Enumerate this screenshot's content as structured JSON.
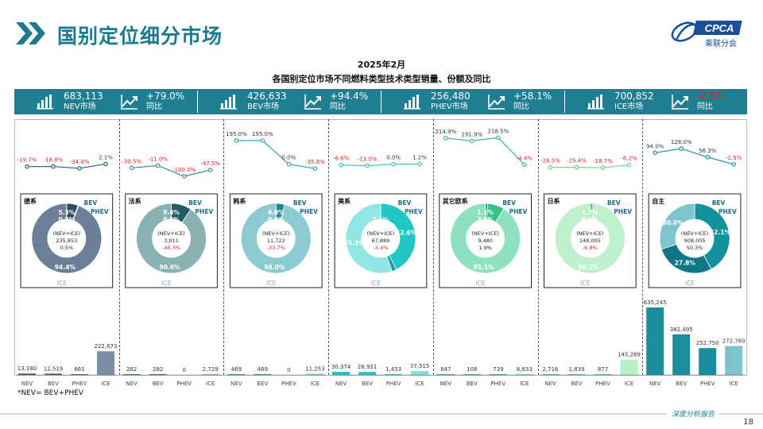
{
  "header": {
    "title": "国别定位细分市场",
    "logo_text": "CPCA",
    "logo_sub": "乘联分会"
  },
  "chart_heading": {
    "line1": "2025年2月",
    "line2": "各国别定位市场不同燃料类型技术类型销量、份额及同比"
  },
  "kpis": [
    {
      "value": "683,113",
      "label": "NEV市场",
      "yoy": "+79.0%",
      "yoy_label": "同比",
      "yoy_color": "#ffffff"
    },
    {
      "value": "426,633",
      "label": "BEV市场",
      "yoy": "+94.4%",
      "yoy_label": "同比",
      "yoy_color": "#ffffff"
    },
    {
      "value": "256,480",
      "label": "PHEV市场",
      "yoy": "+58.1%",
      "yoy_label": "同比",
      "yoy_color": "#ffffff"
    },
    {
      "value": "700,852",
      "label": "ICE市场",
      "yoy": "-2.5%",
      "yoy_label": "同比",
      "yoy_color": "#e02020"
    }
  ],
  "footer": {
    "note": "*NEV= BEV+PHEV",
    "slogan": "深度分析报告",
    "page": "18"
  },
  "colors": {
    "teal": "#1f7f91",
    "neg": "#e02020"
  },
  "chart_data": {
    "type": "bar",
    "categories": [
      "NEV",
      "BEV",
      "PHEV",
      "ICE"
    ],
    "groups": [
      {
        "name": "德系",
        "volumes": [
          13180,
          12519,
          661,
          222673
        ],
        "volume_labels": [
          "13,180",
          "12,519",
          "661",
          "222,673"
        ],
        "yoy": [
          -19.7,
          -18.8,
          -34.4,
          2.1
        ],
        "yoy_labels": [
          "-19.7%",
          "-18.8%",
          "-34.4%",
          "2.1%"
        ],
        "donut": {
          "values": [
            5.3,
            0.3,
            94.4
          ],
          "labels": [
            "5.3%",
            "0.3%",
            "94.4%"
          ],
          "center": [
            "(NEV+ICE)",
            "235,853",
            "0.5%"
          ],
          "center_neg": false,
          "seg_names": [
            "BEV",
            "PHEV",
            "ICE"
          ],
          "colors": [
            "#2d4b5c",
            "#0f2a3a",
            "#6b7f97"
          ]
        },
        "bar_color": "#7c8da8",
        "nev_color": "#3d5a6e",
        "line_color": "#2b5f78"
      },
      {
        "name": "法系",
        "volumes": [
          282,
          282,
          0,
          2729
        ],
        "volume_labels": [
          "282",
          "282",
          "0",
          "2,729"
        ],
        "yoy": [
          -30.5,
          -11.0,
          -100.0,
          -47.5
        ],
        "yoy_labels": [
          "-30.5%",
          "-11.0%",
          "-100.0%",
          "-47.5%"
        ],
        "donut": {
          "values": [
            9.4,
            0.0,
            90.6
          ],
          "labels": [
            "9.4%",
            "0.0%",
            "90.6%"
          ],
          "center": [
            "(NEV+ICE)",
            "3,011",
            "-46.3%"
          ],
          "center_neg": true,
          "seg_names": [
            "BEV",
            "PHEV",
            "ICE"
          ],
          "colors": [
            "#245c66",
            "#1a4750",
            "#8bb2b3"
          ]
        },
        "bar_color": "#8bb2b3",
        "nev_color": "#2f6f78",
        "line_color": "#3f8a92"
      },
      {
        "name": "韩系",
        "volumes": [
          469,
          469,
          0,
          11253
        ],
        "volume_labels": [
          "469",
          "469",
          "0",
          "11,253"
        ],
        "yoy": [
          195.0,
          195.0,
          0.0,
          -35.8
        ],
        "yoy_labels": [
          "195.0%",
          "195.0%",
          "0.0%",
          "-35.8%"
        ],
        "donut": {
          "values": [
            4.0,
            0.0,
            96.0
          ],
          "labels": [
            "4.0%",
            "0.0%",
            "96.0%"
          ],
          "center": [
            "(NEV+ICE)",
            "11,722",
            "-33.7%"
          ],
          "center_neg": true,
          "seg_names": [
            "BEV",
            "PHEV",
            "ICE"
          ],
          "colors": [
            "#1f8a94",
            "#16707a",
            "#8bcbd1"
          ]
        },
        "bar_color": "#8bcbd1",
        "nev_color": "#28919a",
        "line_color": "#3aa2ad"
      },
      {
        "name": "美系",
        "volumes": [
          30374,
          28921,
          1453,
          37515
        ],
        "volume_labels": [
          "30,374",
          "28,921",
          "1,453",
          "37,515"
        ],
        "yoy": [
          -6.6,
          -13.0,
          0.0,
          1.2
        ],
        "yoy_labels": [
          "-6.6%",
          "-13.0%",
          "0.0%",
          "1.2%"
        ],
        "donut": {
          "values": [
            42.6,
            2.1,
            55.3
          ],
          "labels": [
            "42.6%",
            "2.1%",
            "55.3%"
          ],
          "center": [
            "(NEV+ICE)",
            "67,889",
            "-3.4%"
          ],
          "center_neg": true,
          "seg_names": [
            "BEV",
            "PHEV",
            "ICE"
          ],
          "colors": [
            "#1fc7c7",
            "#139aa0",
            "#8fe6e2"
          ]
        },
        "bar_color": "#7fe0dc",
        "nev_color": "#22c4c4",
        "line_color": "#34c7c7"
      },
      {
        "name": "其它欧系",
        "volumes": [
          847,
          108,
          739,
          8633
        ],
        "volume_labels": [
          "847",
          "108",
          "739",
          "8,633"
        ],
        "yoy": [
          214.9,
          191.9,
          218.5,
          -4.4
        ],
        "yoy_labels": [
          "214.9%",
          "191.9%",
          "218.5%",
          "-4.4%"
        ],
        "donut": {
          "values": [
            1.1,
            7.8,
            91.1
          ],
          "labels": [
            "1.1%",
            "7.8%",
            "91.1%"
          ],
          "center": [
            "(NEV+ICE)",
            "9,480",
            "1.9%"
          ],
          "center_neg": false,
          "seg_names": [
            "BEV",
            "PHEV",
            "ICE"
          ],
          "colors": [
            "#1fa07a",
            "#36c28a",
            "#8fe0bf"
          ]
        },
        "bar_color": "#8fe0bf",
        "nev_color": "#2fb38a",
        "line_color": "#3ab98e"
      },
      {
        "name": "日系",
        "volumes": [
          2716,
          1839,
          877,
          145289
        ],
        "volume_labels": [
          "2,716",
          "1,839",
          "877",
          "145,289"
        ],
        "yoy": [
          -26.5,
          -25.4,
          -28.7,
          -6.2
        ],
        "yoy_labels": [
          "-26.5%",
          "-25.4%",
          "-28.7%",
          "-6.2%"
        ],
        "donut": {
          "values": [
            1.2,
            0.6,
            98.2
          ],
          "labels": [
            "1.2%",
            "0.6%",
            "98.2%"
          ],
          "center": [
            "(NEV+ICE)",
            "148,005",
            "-6.8%"
          ],
          "center_neg": true,
          "seg_names": [
            "BEV",
            "PHEV",
            "ICE"
          ],
          "colors": [
            "#49c76a",
            "#2fa552",
            "#bff0cc"
          ]
        },
        "bar_color": "#b8f0c8",
        "nev_color": "#5ccf7a",
        "line_color": "#6fd58a"
      },
      {
        "name": "自主",
        "volumes": [
          635245,
          382495,
          252750,
          272760
        ],
        "volume_labels": [
          "635,245",
          "382,495",
          "252,750",
          "272,760"
        ],
        "yoy": [
          94.0,
          128.0,
          58.3,
          -1.5
        ],
        "yoy_labels": [
          "94.0%",
          "128.0%",
          "58.3%",
          "-1.5%"
        ],
        "donut": {
          "values": [
            42.1,
            27.8,
            30.0
          ],
          "labels": [
            "42.1%",
            "27.8%",
            "30.0%"
          ],
          "center": [
            "(NEV+ICE)",
            "908,005",
            "50.3%"
          ],
          "center_neg": false,
          "seg_names": [
            "BEV",
            "PHEV",
            "ICE"
          ],
          "colors": [
            "#13919f",
            "#0f7685",
            "#7fc3cc"
          ]
        },
        "bar_color": "#7fc3cc",
        "nev_color": "#1a8e9c",
        "line_color": "#1f93a3"
      }
    ]
  }
}
